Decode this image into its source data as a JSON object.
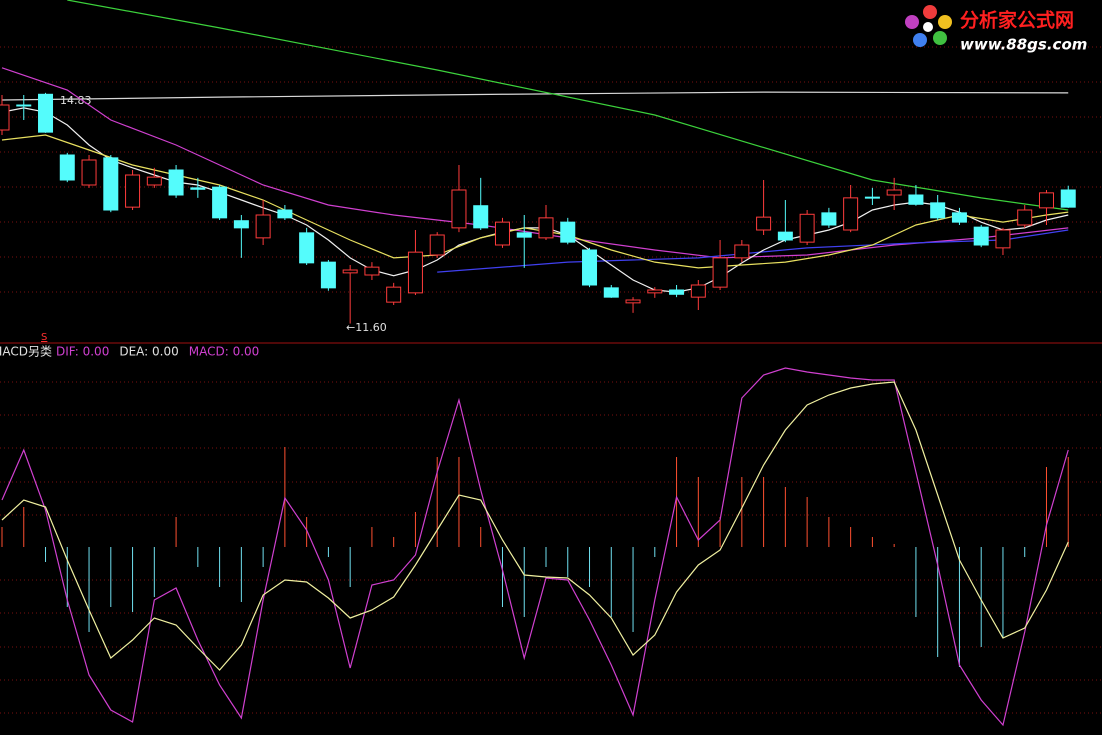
{
  "chart_data": [
    {
      "type": "candlestick",
      "ylim": [
        11.37,
        16.13
      ],
      "up_color": "#ff3c3c",
      "down_color": "#54fcfc",
      "open": [
        14.31,
        14.66,
        14.81,
        13.96,
        13.54,
        13.92,
        13.23,
        13.54,
        13.75,
        13.5,
        13.51,
        13.04,
        12.8,
        13.19,
        12.87,
        12.46,
        12.31,
        12.28,
        11.9,
        12.03,
        12.56,
        12.94,
        13.25,
        12.7,
        12.87,
        12.8,
        13.02,
        12.63,
        12.1,
        11.89,
        12.03,
        12.07,
        11.97,
        12.11,
        12.52,
        12.91,
        12.88,
        12.74,
        13.15,
        12.91,
        13.37,
        13.4,
        13.4,
        13.29,
        13.15,
        12.95,
        12.66,
        12.98,
        13.22,
        13.47
      ],
      "high": [
        14.8,
        14.8,
        14.83,
        13.99,
        13.96,
        13.96,
        13.75,
        13.78,
        13.82,
        13.64,
        13.54,
        13.12,
        13.33,
        13.26,
        12.94,
        12.49,
        12.42,
        12.46,
        12.17,
        12.91,
        12.88,
        13.82,
        13.64,
        13.08,
        13.12,
        13.26,
        13.08,
        12.66,
        12.14,
        11.97,
        12.11,
        12.14,
        12.21,
        12.77,
        12.77,
        13.61,
        13.33,
        13.19,
        13.22,
        13.54,
        13.5,
        13.64,
        13.54,
        13.4,
        13.22,
        12.98,
        12.94,
        13.26,
        13.47,
        13.53
      ],
      "low": [
        14.24,
        14.45,
        14.27,
        13.58,
        13.5,
        13.16,
        13.19,
        13.5,
        13.36,
        13.36,
        13.05,
        12.52,
        12.7,
        13.05,
        12.42,
        12.06,
        11.6,
        12.21,
        11.86,
        12.0,
        12.52,
        12.88,
        12.91,
        12.66,
        12.38,
        12.77,
        12.71,
        12.11,
        11.96,
        11.75,
        11.96,
        11.97,
        11.79,
        12.07,
        12.46,
        12.84,
        12.74,
        12.7,
        12.94,
        12.88,
        13.26,
        13.19,
        13.25,
        13.05,
        12.98,
        12.67,
        12.56,
        12.94,
        12.98,
        13.22
      ],
      "close": [
        14.66,
        14.65,
        14.28,
        13.61,
        13.89,
        13.19,
        13.68,
        13.65,
        13.4,
        13.48,
        13.08,
        12.94,
        13.12,
        13.08,
        12.45,
        12.1,
        12.35,
        12.39,
        12.11,
        12.6,
        12.84,
        13.47,
        12.94,
        13.02,
        12.81,
        13.08,
        12.74,
        12.14,
        11.97,
        11.93,
        12.07,
        12.01,
        12.14,
        12.52,
        12.7,
        13.09,
        12.77,
        13.13,
        12.98,
        13.36,
        13.36,
        13.47,
        13.27,
        13.08,
        13.02,
        12.7,
        12.91,
        13.19,
        13.43,
        13.23
      ],
      "series": [
        {
          "color": "#d8d8d8",
          "x": [
            0,
            10,
            23,
            35,
            49
          ],
          "values": [
            14.73,
            14.77,
            14.81,
            14.84,
            14.83
          ]
        },
        {
          "color": "#3cd23c",
          "x": [
            3,
            10,
            20,
            30,
            40,
            45,
            49
          ],
          "values": [
            16.13,
            15.74,
            15.15,
            14.52,
            13.61,
            13.36,
            13.19
          ]
        },
        {
          "color": "#d040d0",
          "x": [
            0,
            3,
            5,
            8,
            12,
            15,
            18,
            22,
            26,
            30,
            33,
            37,
            41,
            45,
            49
          ],
          "values": [
            15.18,
            14.87,
            14.45,
            14.1,
            13.54,
            13.26,
            13.12,
            12.98,
            12.8,
            12.63,
            12.52,
            12.56,
            12.7,
            12.8,
            12.94
          ]
        },
        {
          "color": "#4040f0",
          "x": [
            20,
            26,
            32,
            37,
            42,
            46,
            49
          ],
          "values": [
            12.32,
            12.46,
            12.52,
            12.66,
            12.73,
            12.77,
            12.91
          ]
        },
        {
          "color": "#f0f0f0",
          "values": [
            14.56,
            14.62,
            14.56,
            14.38,
            14.1,
            13.89,
            13.78,
            13.68,
            13.58,
            13.54,
            13.44,
            13.33,
            13.22,
            13.12,
            12.98,
            12.77,
            12.52,
            12.35,
            12.27,
            12.35,
            12.49,
            12.7,
            12.8,
            12.88,
            12.94,
            12.94,
            12.84,
            12.63,
            12.42,
            12.21,
            12.07,
            12.04,
            12.1,
            12.25,
            12.45,
            12.63,
            12.77,
            12.84,
            12.91,
            13.02,
            13.19,
            13.26,
            13.3,
            13.26,
            13.16,
            13.02,
            12.91,
            12.94,
            13.05,
            13.12
          ]
        },
        {
          "color": "#e8e060",
          "x": [
            0,
            2,
            4,
            6,
            8,
            10,
            12,
            14,
            16,
            18,
            20,
            22,
            24,
            26,
            28,
            30,
            32,
            34,
            36,
            38,
            40,
            42,
            44,
            46,
            48,
            49
          ],
          "values": [
            14.17,
            14.24,
            14.03,
            13.82,
            13.68,
            13.54,
            13.33,
            13.05,
            12.77,
            12.52,
            12.56,
            12.8,
            12.94,
            12.84,
            12.63,
            12.46,
            12.38,
            12.42,
            12.46,
            12.56,
            12.7,
            12.98,
            13.12,
            13.02,
            13.12,
            13.16
          ]
        }
      ],
      "annotations": [
        "14.83",
        "←11.60",
        "S"
      ]
    },
    {
      "type": "macd",
      "ylim": [
        -0.188,
        0.202
      ],
      "title": "MACD另类",
      "legend": [
        {
          "text": "DIF: 0.00",
          "color": "#d040d0"
        },
        {
          "text": "DEA: 0.00",
          "color": "#e0e0e0"
        },
        {
          "text": "MACD: 0.00",
          "color": "#d040d0"
        }
      ],
      "up_color": "#ff5030",
      "down_color": "#70e0f0",
      "histogram": [
        0.02,
        0.04,
        -0.015,
        -0.06,
        -0.085,
        -0.06,
        -0.065,
        -0.05,
        0.03,
        -0.02,
        -0.04,
        -0.055,
        -0.02,
        0.1,
        0.03,
        -0.01,
        -0.04,
        0.02,
        0.01,
        0.035,
        0.09,
        0.09,
        0.02,
        -0.06,
        -0.07,
        -0.02,
        -0.03,
        -0.04,
        -0.07,
        -0.085,
        -0.01,
        0.09,
        0.07,
        0.03,
        0.07,
        0.07,
        0.06,
        0.05,
        0.03,
        0.02,
        0.01,
        0.003,
        -0.07,
        -0.11,
        -0.12,
        -0.1,
        -0.09,
        -0.01,
        0.08,
        0.09
      ],
      "series": [
        {
          "color": "#d040d0",
          "values": [
            0.047,
            0.097,
            0.037,
            -0.053,
            -0.128,
            -0.163,
            -0.175,
            -0.053,
            -0.041,
            -0.093,
            -0.138,
            -0.171,
            -0.053,
            0.049,
            0.017,
            -0.033,
            -0.121,
            -0.038,
            -0.033,
            -0.008,
            0.075,
            0.147,
            0.057,
            -0.023,
            -0.111,
            -0.031,
            -0.033,
            -0.073,
            -0.118,
            -0.168,
            -0.053,
            0.05,
            0.007,
            0.027,
            0.149,
            0.172,
            0.179,
            0.175,
            0.172,
            0.169,
            0.167,
            0.167,
            0.075,
            -0.018,
            -0.118,
            -0.153,
            -0.178,
            -0.085,
            0.022,
            0.097
          ]
        },
        {
          "color": "#f0f0a0",
          "values": [
            0.027,
            0.047,
            0.04,
            -0.013,
            -0.063,
            -0.111,
            -0.093,
            -0.071,
            -0.078,
            -0.101,
            -0.123,
            -0.098,
            -0.048,
            -0.033,
            -0.035,
            -0.051,
            -0.071,
            -0.063,
            -0.05,
            -0.018,
            0.017,
            0.052,
            0.047,
            0.007,
            -0.028,
            -0.03,
            -0.031,
            -0.048,
            -0.071,
            -0.108,
            -0.088,
            -0.045,
            -0.018,
            -0.003,
            0.039,
            0.082,
            0.117,
            0.142,
            0.152,
            0.159,
            0.163,
            0.165,
            0.117,
            0.052,
            -0.013,
            -0.053,
            -0.091,
            -0.081,
            -0.043,
            0.005
          ]
        }
      ]
    }
  ],
  "watermark": {
    "title": "分析家公式网",
    "url": "www.88gs.com"
  }
}
